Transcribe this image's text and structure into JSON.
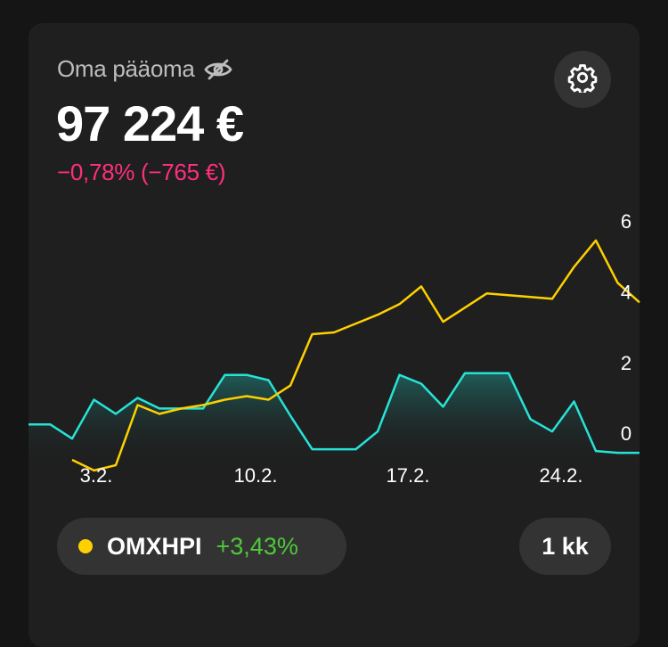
{
  "header": {
    "title": "Oma pääoma",
    "amount": "97 224 €",
    "change": "−0,78% (−765 €)",
    "icons": [
      "eye-off-icon",
      "gear-icon"
    ]
  },
  "chart_data": {
    "type": "line",
    "x_tick_labels": [
      "3.2.",
      "10.2.",
      "17.2.",
      "24.2."
    ],
    "y_tick_labels": [
      "6",
      "4",
      "2",
      "0"
    ],
    "y_ticks": [
      6,
      4,
      2,
      0
    ],
    "ylim": [
      -0.8,
      6.3
    ],
    "x_range": [
      0,
      28
    ],
    "series": [
      {
        "name": "OMXHPI",
        "color": "#ffd000",
        "fill": false,
        "points": [
          [
            2,
            -0.75
          ],
          [
            3,
            -1.05
          ],
          [
            4,
            -0.9
          ],
          [
            5,
            0.8
          ],
          [
            6,
            0.55
          ],
          [
            7,
            0.7
          ],
          [
            8,
            0.8
          ],
          [
            9,
            0.95
          ],
          [
            10,
            1.05
          ],
          [
            11,
            0.95
          ],
          [
            12,
            1.35
          ],
          [
            13,
            2.8
          ],
          [
            14,
            2.85
          ],
          [
            15,
            3.1
          ],
          [
            16,
            3.35
          ],
          [
            17,
            3.65
          ],
          [
            18,
            4.15
          ],
          [
            19,
            3.15
          ],
          [
            20,
            3.55
          ],
          [
            21,
            3.95
          ],
          [
            22,
            3.9
          ],
          [
            23,
            3.85
          ],
          [
            24,
            3.8
          ],
          [
            25,
            4.7
          ],
          [
            26,
            5.45
          ],
          [
            27,
            4.25
          ],
          [
            28,
            3.7
          ]
        ]
      },
      {
        "color": "#27e3d6",
        "fill": true,
        "points": [
          [
            0,
            0.25
          ],
          [
            1,
            0.25
          ],
          [
            2,
            -0.15
          ],
          [
            3,
            0.95
          ],
          [
            4,
            0.55
          ],
          [
            5,
            1.0
          ],
          [
            6,
            0.7
          ],
          [
            7,
            0.7
          ],
          [
            8,
            0.7
          ],
          [
            9,
            1.65
          ],
          [
            10,
            1.65
          ],
          [
            11,
            1.5
          ],
          [
            12,
            0.5
          ],
          [
            13,
            -0.45
          ],
          [
            14,
            -0.45
          ],
          [
            15,
            -0.45
          ],
          [
            16,
            0.05
          ],
          [
            17,
            1.65
          ],
          [
            18,
            1.4
          ],
          [
            19,
            0.75
          ],
          [
            20,
            1.7
          ],
          [
            21,
            1.7
          ],
          [
            22,
            1.7
          ],
          [
            23,
            0.4
          ],
          [
            24,
            0.05
          ],
          [
            25,
            0.9
          ],
          [
            26,
            -0.5
          ],
          [
            27,
            -0.55
          ],
          [
            28,
            -0.55
          ]
        ]
      }
    ]
  },
  "legend": {
    "name": "OMXHPI",
    "change": "+3,43%",
    "dot_color": "#ffd000"
  },
  "period": {
    "label": "1 kk"
  }
}
